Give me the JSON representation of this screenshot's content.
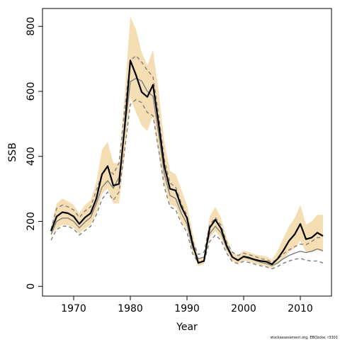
{
  "chart_data": {
    "type": "line",
    "xlabel": "Year",
    "ylabel": "SSB",
    "xlim": [
      1964.5,
      2015.5
    ],
    "ylim": [
      -30,
      855
    ],
    "x_ticks": [
      1970,
      1980,
      1990,
      2000,
      2010
    ],
    "y_ticks": [
      0,
      200,
      400,
      600,
      800
    ],
    "grid": false,
    "footnote": "stockassessment.org, EBQzcke, r3301",
    "colors": {
      "band": "#f5deb3",
      "main": "#000000",
      "grey_solid": "#7f7f7f",
      "grey_dashed": "#7f7f7f"
    },
    "x": [
      1966,
      1967,
      1968,
      1969,
      1970,
      1971,
      1972,
      1973,
      1974,
      1975,
      1976,
      1977,
      1978,
      1979,
      1980,
      1981,
      1982,
      1983,
      1984,
      1985,
      1986,
      1987,
      1988,
      1989,
      1990,
      1991,
      1992,
      1993,
      1994,
      1995,
      1996,
      1997,
      1998,
      1999,
      2000,
      2001,
      2002,
      2003,
      2004,
      2005,
      2006,
      2007,
      2008,
      2009,
      2010,
      2011,
      2012,
      2013,
      2014
    ],
    "series": [
      {
        "role": "estimate",
        "values": [
          170,
          215,
          228,
          225,
          215,
          192,
          212,
          225,
          270,
          345,
          370,
          310,
          315,
          490,
          695,
          650,
          598,
          583,
          620,
          500,
          370,
          300,
          295,
          245,
          210,
          130,
          72,
          78,
          180,
          205,
          178,
          125,
          90,
          80,
          92,
          88,
          82,
          78,
          76,
          68,
          85,
          110,
          140,
          160,
          192,
          145,
          150,
          165,
          155
        ]
      },
      {
        "role": "band_upper",
        "values": [
          185,
          255,
          270,
          262,
          250,
          225,
          250,
          265,
          320,
          420,
          445,
          380,
          378,
          590,
          830,
          790,
          720,
          680,
          728,
          600,
          445,
          355,
          345,
          298,
          250,
          165,
          85,
          90,
          215,
          245,
          210,
          150,
          105,
          95,
          110,
          105,
          98,
          95,
          92,
          82,
          110,
          148,
          185,
          210,
          250,
          190,
          200,
          220,
          220
        ]
      },
      {
        "role": "band_lower",
        "values": [
          155,
          178,
          190,
          188,
          180,
          162,
          178,
          190,
          225,
          285,
          302,
          255,
          255,
          400,
          580,
          535,
          495,
          478,
          525,
          410,
          310,
          252,
          245,
          200,
          172,
          105,
          62,
          68,
          150,
          170,
          148,
          105,
          78,
          70,
          80,
          75,
          70,
          65,
          62,
          56,
          68,
          85,
          105,
          118,
          140,
          105,
          105,
          112,
          105
        ]
      },
      {
        "role": "grey_solid",
        "values": [
          160,
          200,
          210,
          210,
          200,
          180,
          198,
          212,
          255,
          305,
          325,
          302,
          335,
          480,
          630,
          640,
          632,
          600,
          585,
          470,
          345,
          280,
          270,
          225,
          192,
          118,
          85,
          90,
          162,
          185,
          165,
          118,
          90,
          82,
          90,
          85,
          80,
          74,
          70,
          64,
          72,
          85,
          95,
          102,
          108,
          104,
          108,
          115,
          110
        ]
      },
      {
        "role": "grey_dashed_upper",
        "values": [
          175,
          240,
          250,
          245,
          235,
          212,
          232,
          245,
          295,
          345,
          365,
          345,
          380,
          545,
          695,
          710,
          690,
          665,
          645,
          525,
          390,
          318,
          305,
          255,
          218,
          138,
          98,
          105,
          188,
          212,
          188,
          135,
          105,
          95,
          102,
          97,
          92,
          85,
          82,
          74,
          84,
          100,
          112,
          122,
          130,
          128,
          138,
          150,
          150
        ]
      },
      {
        "role": "grey_dashed_lower",
        "values": [
          142,
          175,
          185,
          185,
          176,
          158,
          172,
          185,
          220,
          268,
          290,
          265,
          290,
          420,
          560,
          575,
          565,
          535,
          525,
          420,
          305,
          245,
          235,
          195,
          166,
          100,
          72,
          76,
          138,
          158,
          142,
          102,
          76,
          70,
          77,
          73,
          68,
          63,
          60,
          54,
          61,
          71,
          78,
          83,
          86,
          80,
          78,
          78,
          72
        ]
      }
    ]
  }
}
